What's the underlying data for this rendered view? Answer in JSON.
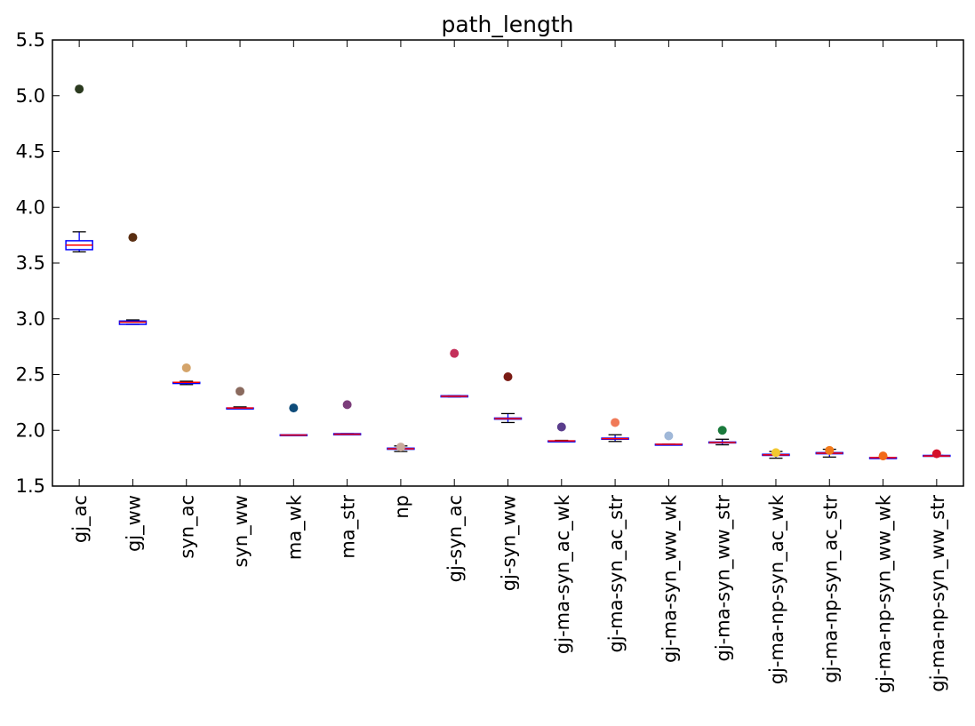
{
  "chart_data": {
    "type": "box",
    "title": "path_length",
    "xlabel": "",
    "ylabel": "",
    "ylim": [
      1.5,
      5.5
    ],
    "yticks": [
      "1.5",
      "2.0",
      "2.5",
      "3.0",
      "3.5",
      "4.0",
      "4.5",
      "5.0",
      "5.5"
    ],
    "grid": false,
    "legend": "none",
    "categories": [
      "gj_ac",
      "gj_ww",
      "syn_ac",
      "syn_ww",
      "ma_wk",
      "ma_str",
      "np",
      "gj-syn_ac",
      "gj-syn_ww",
      "gj-ma-syn_ac_wk",
      "gj-ma-syn_ac_str",
      "gj-ma-syn_ww_wk",
      "gj-ma-syn_ww_str",
      "gj-ma-np-syn_ac_wk",
      "gj-ma-np-syn_ac_str",
      "gj-ma-np-syn_ww_wk",
      "gj-ma-np-syn_ww_str"
    ],
    "boxes": [
      {
        "whisker_low": 3.6,
        "q1": 3.62,
        "median": 3.66,
        "q3": 3.7,
        "whisker_high": 3.78,
        "box_color": "#0000ff",
        "median_color": "#ff0000"
      },
      {
        "whisker_low": 2.95,
        "q1": 2.95,
        "median": 2.97,
        "q3": 2.98,
        "whisker_high": 2.99,
        "box_color": "#0000ff",
        "median_color": "#ff0000"
      },
      {
        "whisker_low": 2.41,
        "q1": 2.42,
        "median": 2.43,
        "q3": 2.43,
        "whisker_high": 2.44,
        "box_color": "#0000ff",
        "median_color": "#ff0000"
      },
      {
        "whisker_low": 2.2,
        "q1": 2.2,
        "median": 2.2,
        "q3": 2.2,
        "whisker_high": 2.21,
        "box_color": "#0000ff",
        "median_color": "#ff0000"
      },
      {
        "whisker_low": 1.955,
        "q1": 1.955,
        "median": 1.957,
        "q3": 1.96,
        "whisker_high": 1.96,
        "box_color": "#0000ff",
        "median_color": "#ff0000"
      },
      {
        "whisker_low": 1.96,
        "q1": 1.96,
        "median": 1.965,
        "q3": 1.97,
        "whisker_high": 1.97,
        "box_color": "#0000ff",
        "median_color": "#ff0000"
      },
      {
        "whisker_low": 1.81,
        "q1": 1.83,
        "median": 1.835,
        "q3": 1.84,
        "whisker_high": 1.86,
        "box_color": "#0000ff",
        "median_color": "#ff0000"
      },
      {
        "whisker_low": 2.3,
        "q1": 2.3,
        "median": 2.305,
        "q3": 2.31,
        "whisker_high": 2.31,
        "box_color": "#0000ff",
        "median_color": "#ff0000"
      },
      {
        "whisker_low": 2.07,
        "q1": 2.1,
        "median": 2.105,
        "q3": 2.11,
        "whisker_high": 2.15,
        "box_color": "#0000ff",
        "median_color": "#ff0000"
      },
      {
        "whisker_low": 1.905,
        "q1": 1.905,
        "median": 1.905,
        "q3": 1.905,
        "whisker_high": 1.91,
        "box_color": "#0000ff",
        "median_color": "#ff0000"
      },
      {
        "whisker_low": 1.9,
        "q1": 1.92,
        "median": 1.925,
        "q3": 1.93,
        "whisker_high": 1.96,
        "box_color": "#0000ff",
        "median_color": "#ff0000"
      },
      {
        "whisker_low": 1.875,
        "q1": 1.875,
        "median": 1.875,
        "q3": 1.875,
        "whisker_high": 1.875,
        "box_color": "#0000ff",
        "median_color": "#ff0000"
      },
      {
        "whisker_low": 1.87,
        "q1": 1.89,
        "median": 1.89,
        "q3": 1.895,
        "whisker_high": 1.92,
        "box_color": "#0000ff",
        "median_color": "#ff0000"
      },
      {
        "whisker_low": 1.75,
        "q1": 1.775,
        "median": 1.78,
        "q3": 1.785,
        "whisker_high": 1.81,
        "box_color": "#0000ff",
        "median_color": "#ff0000"
      },
      {
        "whisker_low": 1.76,
        "q1": 1.79,
        "median": 1.795,
        "q3": 1.8,
        "whisker_high": 1.83,
        "box_color": "#0000ff",
        "median_color": "#ff0000"
      },
      {
        "whisker_low": 1.755,
        "q1": 1.755,
        "median": 1.755,
        "q3": 1.755,
        "whisker_high": 1.755,
        "box_color": "#0000ff",
        "median_color": "#ff0000"
      },
      {
        "whisker_low": 1.77,
        "q1": 1.77,
        "median": 1.77,
        "q3": 1.775,
        "whisker_high": 1.775,
        "box_color": "#0000ff",
        "median_color": "#ff0000"
      }
    ],
    "points": [
      {
        "y": 5.06,
        "color": "#2b3a1f"
      },
      {
        "y": 3.73,
        "color": "#5a2e12"
      },
      {
        "y": 2.56,
        "color": "#d4a46a"
      },
      {
        "y": 2.35,
        "color": "#8a6a5e"
      },
      {
        "y": 2.2,
        "color": "#0f4c7a"
      },
      {
        "y": 2.23,
        "color": "#7b3d7a"
      },
      {
        "y": 1.85,
        "color": "#c9a99b"
      },
      {
        "y": 2.69,
        "color": "#c42f5a"
      },
      {
        "y": 2.48,
        "color": "#7a1b14"
      },
      {
        "y": 2.03,
        "color": "#5a3d8c"
      },
      {
        "y": 2.07,
        "color": "#f07a58"
      },
      {
        "y": 1.95,
        "color": "#a0b8d8"
      },
      {
        "y": 2.0,
        "color": "#1a7a3c"
      },
      {
        "y": 1.8,
        "color": "#f2c830"
      },
      {
        "y": 1.82,
        "color": "#f27a1a"
      },
      {
        "y": 1.77,
        "color": "#f26a1a"
      },
      {
        "y": 1.79,
        "color": "#d4102a"
      }
    ]
  }
}
